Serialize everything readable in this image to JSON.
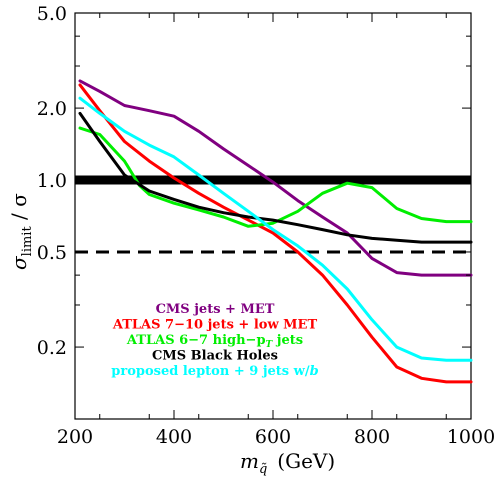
{
  "chart_data": {
    "type": "line",
    "xlabel": "m_q̃ (GeV)",
    "ylabel": "σ_limit / σ",
    "xlim": [
      200,
      1000
    ],
    "ylim": [
      0.1,
      5.0
    ],
    "yscale": "log",
    "x_ticks": [
      200,
      400,
      600,
      800,
      1000
    ],
    "y_ticks": [
      {
        "value": 0.2,
        "label": "0.2"
      },
      {
        "value": 0.5,
        "label": "0.5"
      },
      {
        "value": 1.0,
        "label": "1.0"
      },
      {
        "value": 2.0,
        "label": "2.0"
      },
      {
        "value": 5.0,
        "label": "5.0"
      }
    ],
    "reference_lines": [
      {
        "y": 1.0,
        "style": "solid-thick"
      },
      {
        "y": 0.5,
        "style": "dashed"
      }
    ],
    "legend_position": "bottom-left",
    "series": [
      {
        "name": "CMS jets + MET",
        "color": "#800080",
        "points": [
          [
            210,
            2.6
          ],
          [
            250,
            2.35
          ],
          [
            300,
            2.05
          ],
          [
            350,
            1.95
          ],
          [
            400,
            1.85
          ],
          [
            450,
            1.6
          ],
          [
            500,
            1.35
          ],
          [
            550,
            1.15
          ],
          [
            600,
            0.98
          ],
          [
            650,
            0.82
          ],
          [
            700,
            0.7
          ],
          [
            750,
            0.6
          ],
          [
            800,
            0.47
          ],
          [
            850,
            0.41
          ],
          [
            900,
            0.4
          ],
          [
            950,
            0.4
          ],
          [
            1000,
            0.4
          ]
        ]
      },
      {
        "name": "ATLAS 7–10 jets + low MET",
        "color": "#ff0000",
        "points": [
          [
            210,
            2.5
          ],
          [
            250,
            1.95
          ],
          [
            300,
            1.45
          ],
          [
            350,
            1.2
          ],
          [
            400,
            1.02
          ],
          [
            450,
            0.88
          ],
          [
            500,
            0.77
          ],
          [
            550,
            0.68
          ],
          [
            600,
            0.6
          ],
          [
            650,
            0.5
          ],
          [
            700,
            0.4
          ],
          [
            750,
            0.3
          ],
          [
            800,
            0.22
          ],
          [
            850,
            0.165
          ],
          [
            900,
            0.148
          ],
          [
            950,
            0.143
          ],
          [
            1000,
            0.143
          ]
        ]
      },
      {
        "name": "ATLAS 6–7 high−p_T jets",
        "color": "#00ee00",
        "points": [
          [
            210,
            1.65
          ],
          [
            250,
            1.55
          ],
          [
            300,
            1.2
          ],
          [
            330,
            0.95
          ],
          [
            350,
            0.87
          ],
          [
            400,
            0.8
          ],
          [
            450,
            0.75
          ],
          [
            500,
            0.7
          ],
          [
            550,
            0.64
          ],
          [
            600,
            0.66
          ],
          [
            650,
            0.74
          ],
          [
            700,
            0.88
          ],
          [
            750,
            0.97
          ],
          [
            800,
            0.93
          ],
          [
            850,
            0.76
          ],
          [
            900,
            0.69
          ],
          [
            950,
            0.67
          ],
          [
            1000,
            0.67
          ]
        ]
      },
      {
        "name": "CMS Black Holes",
        "color": "#000000",
        "points": [
          [
            210,
            1.9
          ],
          [
            250,
            1.45
          ],
          [
            300,
            1.05
          ],
          [
            350,
            0.9
          ],
          [
            400,
            0.83
          ],
          [
            450,
            0.77
          ],
          [
            500,
            0.73
          ],
          [
            550,
            0.7
          ],
          [
            600,
            0.68
          ],
          [
            650,
            0.65
          ],
          [
            700,
            0.62
          ],
          [
            750,
            0.59
          ],
          [
            800,
            0.57
          ],
          [
            850,
            0.56
          ],
          [
            900,
            0.55
          ],
          [
            950,
            0.55
          ],
          [
            1000,
            0.55
          ]
        ]
      },
      {
        "name": "proposed lepton + 9 jets w/b",
        "color": "#00ffff",
        "points": [
          [
            210,
            2.2
          ],
          [
            250,
            1.9
          ],
          [
            300,
            1.6
          ],
          [
            350,
            1.4
          ],
          [
            400,
            1.25
          ],
          [
            450,
            1.05
          ],
          [
            500,
            0.88
          ],
          [
            550,
            0.74
          ],
          [
            600,
            0.62
          ],
          [
            650,
            0.53
          ],
          [
            700,
            0.44
          ],
          [
            750,
            0.35
          ],
          [
            800,
            0.26
          ],
          [
            850,
            0.2
          ],
          [
            900,
            0.18
          ],
          [
            950,
            0.176
          ],
          [
            1000,
            0.176
          ]
        ]
      }
    ]
  },
  "legend": [
    {
      "text": "CMS jets + MET",
      "color": "#800080"
    },
    {
      "text": "ATLAS 7−10 jets + low MET",
      "color": "#ff0000"
    },
    {
      "text": "ATLAS 6−7 high−p",
      "subscript": "T",
      "after": " jets",
      "color": "#00ee00"
    },
    {
      "text": "CMS Black Holes",
      "color": "#000000"
    },
    {
      "text": "proposed lepton + 9 jets w/",
      "italic_tail": "b",
      "color": "#00ffff"
    }
  ],
  "axis_titles": {
    "x_main": "m",
    "x_sub": "q̃",
    "x_unit": "(GeV)",
    "y_main": "σ",
    "y_sub": "limit",
    "y_tail": " / σ"
  }
}
